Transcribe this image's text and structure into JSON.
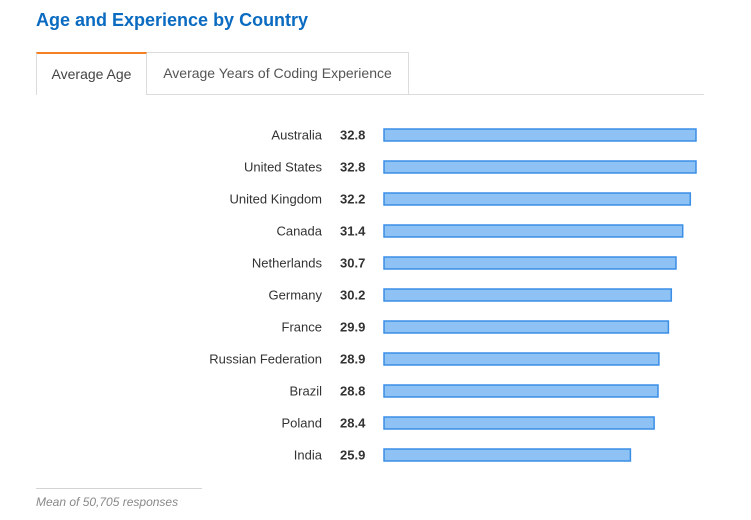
{
  "title": "Age and Experience by Country",
  "tabs": [
    {
      "label": "Average Age",
      "active": true
    },
    {
      "label": "Average Years of Coding Experience",
      "active": false
    }
  ],
  "colors": {
    "title": "#0a6bc1",
    "tab_accent": "#f48024",
    "bar_fill": "#8ec2f4",
    "bar_stroke": "#3a8ee6"
  },
  "footnote": "Mean of 50,705 responses",
  "chart_data": {
    "type": "bar",
    "orientation": "horizontal",
    "categories": [
      "Australia",
      "United States",
      "United Kingdom",
      "Canada",
      "Netherlands",
      "Germany",
      "France",
      "Russian Federation",
      "Brazil",
      "Poland",
      "India"
    ],
    "values": [
      32.8,
      32.8,
      32.2,
      31.4,
      30.7,
      30.2,
      29.9,
      28.9,
      28.8,
      28.4,
      25.9
    ],
    "title": "",
    "xlabel": "",
    "ylabel": "",
    "xlim": [
      0,
      32.8
    ],
    "grid": false
  }
}
